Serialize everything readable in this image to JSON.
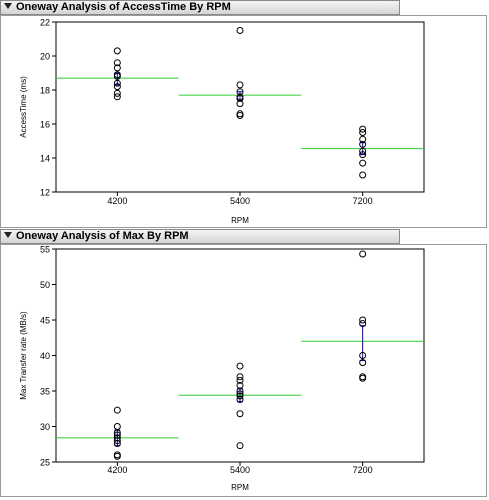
{
  "panels": [
    {
      "title": "Oneway Analysis of AccessTime By RPM"
    },
    {
      "title": "Oneway Analysis of Max By RPM"
    }
  ],
  "chart_data": [
    {
      "type": "scatter",
      "title": "Oneway Analysis of AccessTime By RPM",
      "xlabel": "RPM",
      "ylabel": "AccessTime (ms)",
      "categories": [
        "4200",
        "5400",
        "7200"
      ],
      "ylim": [
        12,
        22
      ],
      "yticks": [
        12,
        14,
        16,
        18,
        20,
        22
      ],
      "points": [
        {
          "category": "4200",
          "values": [
            20.3,
            19.6,
            19.3,
            18.9,
            18.8,
            18.4,
            18.2,
            17.8,
            17.6
          ]
        },
        {
          "category": "5400",
          "values": [
            21.5,
            18.3,
            17.9,
            17.6,
            17.5,
            17.2,
            16.6,
            16.5
          ]
        },
        {
          "category": "7200",
          "values": [
            15.7,
            15.5,
            15.1,
            14.8,
            14.4,
            14.2,
            13.7,
            13.0
          ]
        }
      ],
      "means": [
        18.7,
        17.7,
        14.55
      ],
      "error_bars": [
        {
          "category": "4200",
          "low": 18.3,
          "high": 19.0
        },
        {
          "category": "5400",
          "low": 17.4,
          "high": 17.9
        },
        {
          "category": "7200",
          "low": 14.2,
          "high": 14.9
        }
      ],
      "colors": {
        "points": "#000000",
        "mean_line": "#33cc33",
        "error_bar": "#0000cc"
      },
      "grid": false
    },
    {
      "type": "scatter",
      "title": "Oneway Analysis of Max By RPM",
      "xlabel": "RPM",
      "ylabel": "Max Transfer rate (MB/s)",
      "categories": [
        "4200",
        "5400",
        "7200"
      ],
      "ylim": [
        25,
        55
      ],
      "yticks": [
        25,
        30,
        35,
        40,
        45,
        50,
        55
      ],
      "points": [
        {
          "category": "4200",
          "values": [
            32.3,
            30.0,
            29.1,
            28.8,
            28.4,
            28.0,
            27.6,
            26.0,
            25.8
          ]
        },
        {
          "category": "5400",
          "values": [
            38.5,
            37.0,
            36.5,
            35.8,
            35.0,
            34.6,
            34.3,
            33.8,
            31.8,
            27.3
          ]
        },
        {
          "category": "7200",
          "values": [
            54.3,
            45.0,
            44.5,
            40.0,
            39.0,
            37.0,
            36.8
          ]
        }
      ],
      "means": [
        28.4,
        34.4,
        42.0
      ],
      "error_bars": [
        {
          "category": "4200",
          "low": 27.3,
          "high": 29.5
        },
        {
          "category": "5400",
          "low": 33.5,
          "high": 35.3
        },
        {
          "category": "7200",
          "low": 39.3,
          "high": 44.2
        }
      ],
      "colors": {
        "points": "#000000",
        "mean_line": "#33cc33",
        "error_bar": "#0000cc"
      },
      "grid": false
    }
  ]
}
